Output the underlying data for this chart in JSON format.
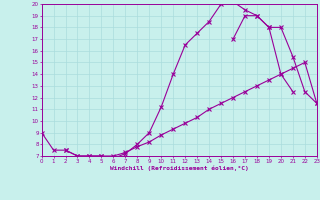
{
  "xlabel": "Windchill (Refroidissement éolien,°C)",
  "bg_color": "#c8f0ec",
  "line_color": "#990099",
  "grid_color": "#aadddd",
  "xlim": [
    0,
    23
  ],
  "ylim": [
    7,
    20
  ],
  "yticks": [
    7,
    8,
    9,
    10,
    11,
    12,
    13,
    14,
    15,
    16,
    17,
    18,
    19,
    20
  ],
  "xticks": [
    0,
    1,
    2,
    3,
    4,
    5,
    6,
    7,
    8,
    9,
    10,
    11,
    12,
    13,
    14,
    15,
    16,
    17,
    18,
    19,
    20,
    21,
    22,
    23
  ],
  "curve1_x": [
    0,
    1,
    2,
    3,
    4,
    5,
    6,
    7,
    8,
    9,
    10,
    11,
    12,
    13,
    14,
    15,
    16,
    17,
    18,
    19,
    20,
    21
  ],
  "curve1_y": [
    9,
    7.5,
    7.5,
    7.0,
    7.0,
    7.0,
    6.8,
    7.2,
    8.0,
    9.0,
    11.2,
    14.0,
    16.5,
    17.5,
    18.5,
    20.0,
    20.2,
    19.5,
    19.0,
    18.0,
    14.0,
    12.5
  ],
  "curve2_x": [
    2,
    3,
    4,
    5,
    6,
    7,
    8,
    9,
    10,
    11,
    12,
    13,
    14,
    15,
    16,
    17,
    18,
    19,
    20,
    21,
    22,
    23
  ],
  "curve2_y": [
    7.5,
    7.0,
    7.0,
    7.0,
    7.0,
    7.3,
    7.8,
    8.2,
    8.8,
    9.3,
    9.8,
    10.3,
    11.0,
    11.5,
    12.0,
    12.5,
    13.0,
    13.5,
    14.0,
    14.5,
    15.0,
    11.5
  ],
  "curve3_x": [
    16,
    17,
    18,
    19,
    20,
    21,
    22,
    23
  ],
  "curve3_y": [
    17.0,
    19.0,
    19.0,
    18.0,
    18.0,
    15.5,
    12.5,
    11.5
  ]
}
